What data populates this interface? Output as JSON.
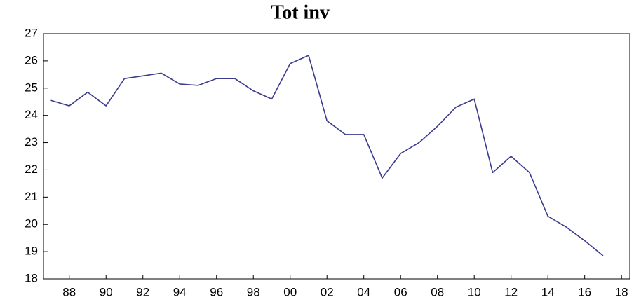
{
  "chart_data": {
    "type": "line",
    "title": "Tot inv",
    "x": [
      1987,
      1988,
      1989,
      1990,
      1991,
      1992,
      1993,
      1994,
      1995,
      1996,
      1997,
      1998,
      1999,
      2000,
      2001,
      2002,
      2003,
      2004,
      2005,
      2006,
      2007,
      2008,
      2009,
      2010,
      2011,
      2012,
      2013,
      2014,
      2015,
      2016,
      2017
    ],
    "series": [
      {
        "color": "#3b3b8f",
        "values": [
          24.55,
          24.35,
          24.85,
          24.35,
          25.35,
          25.45,
          25.55,
          25.15,
          25.1,
          25.35,
          25.35,
          24.9,
          24.6,
          25.9,
          26.2,
          23.8,
          23.3,
          23.3,
          21.7,
          22.6,
          23.0,
          23.6,
          24.3,
          24.6,
          21.9,
          22.5,
          21.9,
          20.3,
          19.9,
          19.4,
          18.85
        ]
      }
    ],
    "xlim": [
      1986.6,
      2018.45
    ],
    "xticks": [
      {
        "value": 1988,
        "label": "88"
      },
      {
        "value": 1990,
        "label": "90"
      },
      {
        "value": 1992,
        "label": "92"
      },
      {
        "value": 1994,
        "label": "94"
      },
      {
        "value": 1996,
        "label": "96"
      },
      {
        "value": 1998,
        "label": "98"
      },
      {
        "value": 2000,
        "label": "00"
      },
      {
        "value": 2002,
        "label": "02"
      },
      {
        "value": 2004,
        "label": "04"
      },
      {
        "value": 2006,
        "label": "06"
      },
      {
        "value": 2008,
        "label": "08"
      },
      {
        "value": 2010,
        "label": "10"
      },
      {
        "value": 2012,
        "label": "12"
      },
      {
        "value": 2014,
        "label": "14"
      },
      {
        "value": 2016,
        "label": "16"
      },
      {
        "value": 2018,
        "label": "18"
      }
    ],
    "ylim": [
      18,
      27
    ],
    "yticks": [
      18,
      19,
      20,
      21,
      22,
      23,
      24,
      25,
      26,
      27
    ],
    "grid": false
  }
}
